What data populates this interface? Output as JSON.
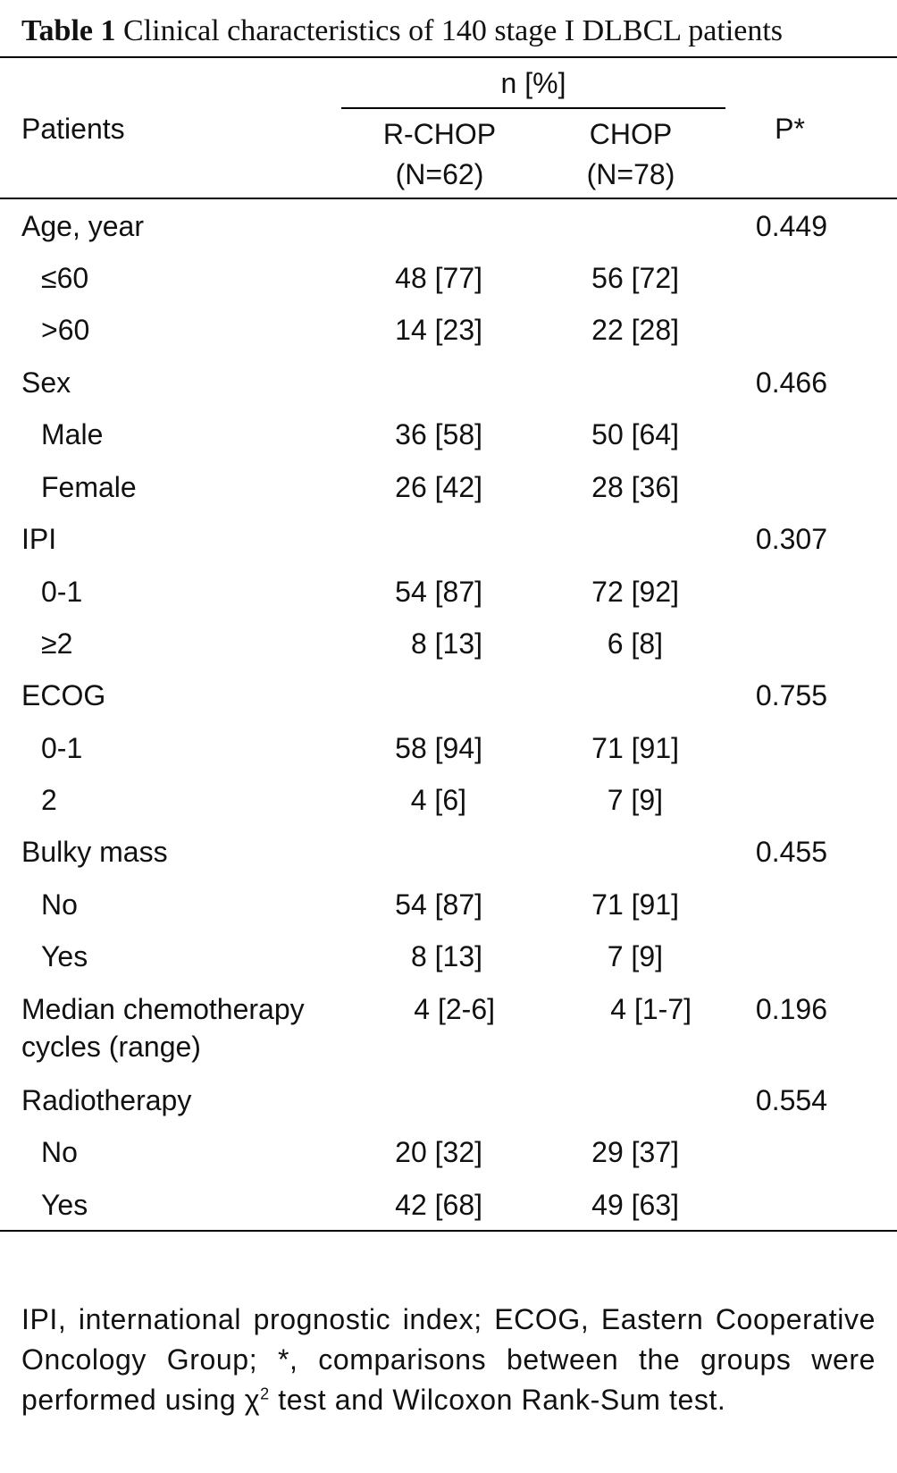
{
  "caption": {
    "label": "Table 1",
    "text": "Clinical characteristics of 140 stage I DLBCL patients"
  },
  "header": {
    "group_label": "n [%]",
    "patients": "Patients",
    "col1_name": "R-CHOP",
    "col1_n": "(N=62)",
    "col2_name": "CHOP",
    "col2_n": "(N=78)",
    "p": "P*"
  },
  "rows": [
    {
      "label": "Age, year",
      "rchop": "",
      "chop": "",
      "p": "0.449"
    },
    {
      "label": "≤60",
      "rchop": "48 [77]",
      "chop": "56 [72]",
      "p": ""
    },
    {
      "label": ">60",
      "rchop": "14 [23]",
      "chop": "22 [28]",
      "p": ""
    },
    {
      "label": "Sex",
      "rchop": "",
      "chop": "",
      "p": "0.466"
    },
    {
      "label": "Male",
      "rchop": "36 [58]",
      "chop": "50 [64]",
      "p": ""
    },
    {
      "label": "Female",
      "rchop": "26 [42]",
      "chop": "28 [36]",
      "p": ""
    },
    {
      "label": "IPI",
      "rchop": "",
      "chop": "",
      "p": "0.307"
    },
    {
      "label": "0-1",
      "rchop": "54 [87]",
      "chop": "72 [92]",
      "p": ""
    },
    {
      "label": "≥2",
      "rchop": "8 [13]",
      "chop": "6 [8]",
      "p": ""
    },
    {
      "label": "ECOG",
      "rchop": "",
      "chop": "",
      "p": "0.755"
    },
    {
      "label": "0-1",
      "rchop": "58 [94]",
      "chop": "71 [91]",
      "p": ""
    },
    {
      "label": "2",
      "rchop": "4 [6]",
      "chop": "7 [9]",
      "p": ""
    },
    {
      "label": "Bulky mass",
      "rchop": "",
      "chop": "",
      "p": "0.455"
    },
    {
      "label": "No",
      "rchop": "54 [87]",
      "chop": "71 [91]",
      "p": ""
    },
    {
      "label": "Yes",
      "rchop": "8 [13]",
      "chop": "7 [9]",
      "p": ""
    },
    {
      "label": "Median chemotherapy",
      "label2": "cycles (range)",
      "rchop": "4 [2-6]",
      "chop": "4 [1-7]",
      "p": "0.196"
    },
    {
      "label": "Radiotherapy",
      "rchop": "",
      "chop": "",
      "p": "0.554"
    },
    {
      "label": "No",
      "rchop": "20 [32]",
      "chop": "29 [37]",
      "p": ""
    },
    {
      "label": "Yes",
      "rchop": "42 [68]",
      "chop": "49 [63]",
      "p": ""
    }
  ],
  "footnote": {
    "before_chi": "IPI, international prognostic index; ECOG, Eastern Cooperative Oncology Group; *, comparisons between the groups were performed using ",
    "chi": "χ",
    "sup": "2",
    "after_chi": " test and Wilcoxon Rank-Sum test."
  }
}
